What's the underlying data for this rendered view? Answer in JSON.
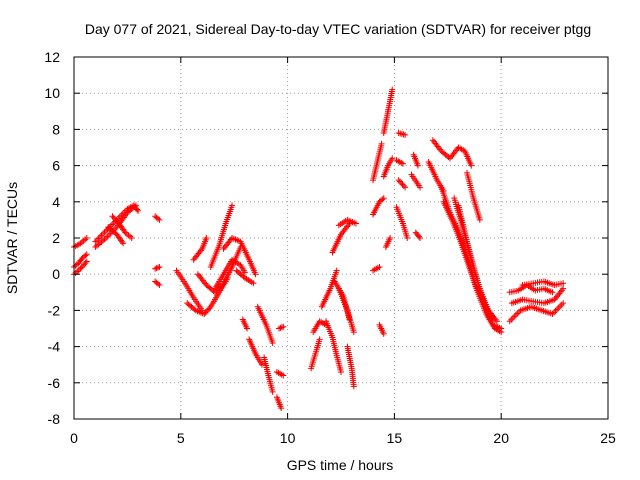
{
  "chart_data": {
    "type": "scatter",
    "title": "Day 077 of 2021, Sidereal Day-to-day VTEC variation (SDTVAR) for receiver ptgg",
    "xlabel": "GPS time / hours",
    "ylabel": "SDTVAR / TECUs",
    "xlim": [
      0,
      25
    ],
    "ylim": [
      -8,
      12
    ],
    "xticks": [
      "0",
      "5",
      "10",
      "15",
      "20",
      "25"
    ],
    "yticks": [
      "-8",
      "-6",
      "-4",
      "-2",
      "0",
      "2",
      "4",
      "6",
      "8",
      "10",
      "12"
    ],
    "grid": true,
    "marker": "+",
    "color": "#ff0000",
    "tracks": [
      [
        [
          0.0,
          1.5
        ],
        [
          0.3,
          1.7
        ],
        [
          0.6,
          2.0
        ]
      ],
      [
        [
          0.0,
          0.4
        ],
        [
          0.2,
          0.6
        ],
        [
          0.4,
          0.9
        ],
        [
          0.6,
          1.1
        ]
      ],
      [
        [
          0.0,
          0.0
        ],
        [
          0.3,
          0.3
        ],
        [
          0.6,
          0.7
        ]
      ],
      [
        [
          1.0,
          1.5
        ],
        [
          1.5,
          2.0
        ],
        [
          2.0,
          2.6
        ],
        [
          2.5,
          3.4
        ],
        [
          2.9,
          3.8
        ]
      ],
      [
        [
          1.0,
          1.8
        ],
        [
          1.5,
          2.4
        ],
        [
          2.0,
          3.0
        ],
        [
          2.5,
          3.6
        ],
        [
          2.8,
          3.8
        ],
        [
          3.0,
          3.5
        ]
      ],
      [
        [
          1.8,
          3.2
        ],
        [
          2.1,
          2.8
        ],
        [
          2.4,
          2.3
        ],
        [
          2.7,
          2.0
        ]
      ],
      [
        [
          1.6,
          2.6
        ],
        [
          2.0,
          2.2
        ],
        [
          2.3,
          1.7
        ]
      ],
      [
        [
          3.8,
          3.2
        ],
        [
          4.0,
          3.0
        ]
      ],
      [
        [
          3.8,
          -0.4
        ],
        [
          4.0,
          -0.6
        ]
      ],
      [
        [
          3.8,
          0.3
        ],
        [
          4.0,
          0.4
        ]
      ],
      [
        [
          4.8,
          0.2
        ],
        [
          5.2,
          -0.5
        ],
        [
          5.6,
          -1.3
        ],
        [
          6.0,
          -2.0
        ]
      ],
      [
        [
          5.3,
          -1.6
        ],
        [
          5.7,
          -2.0
        ],
        [
          6.1,
          -2.2
        ],
        [
          6.4,
          -1.8
        ],
        [
          6.8,
          -1.0
        ],
        [
          7.2,
          -0.2
        ]
      ],
      [
        [
          5.6,
          0.8
        ],
        [
          6.0,
          1.4
        ],
        [
          6.2,
          2.0
        ]
      ],
      [
        [
          5.8,
          0.0
        ],
        [
          6.2,
          -0.6
        ],
        [
          6.6,
          -1.0
        ],
        [
          7.0,
          -0.5
        ],
        [
          7.4,
          0.4
        ],
        [
          7.8,
          1.5
        ]
      ],
      [
        [
          6.4,
          0.4
        ],
        [
          6.8,
          1.6
        ],
        [
          7.1,
          2.8
        ],
        [
          7.4,
          3.8
        ]
      ],
      [
        [
          6.6,
          -0.8
        ],
        [
          7.0,
          0.0
        ],
        [
          7.4,
          0.8
        ],
        [
          7.8,
          0.5
        ],
        [
          8.0,
          0.1
        ]
      ],
      [
        [
          7.0,
          1.4
        ],
        [
          7.4,
          2.0
        ],
        [
          7.8,
          1.8
        ],
        [
          8.2,
          0.8
        ],
        [
          8.5,
          0.0
        ]
      ],
      [
        [
          7.6,
          0.2
        ],
        [
          8.0,
          -0.2
        ],
        [
          8.4,
          -0.5
        ]
      ],
      [
        [
          7.9,
          -2.5
        ],
        [
          8.1,
          -3.0
        ]
      ],
      [
        [
          8.2,
          -3.6
        ],
        [
          8.5,
          -4.4
        ],
        [
          8.8,
          -5.0
        ]
      ],
      [
        [
          8.6,
          -1.8
        ],
        [
          9.0,
          -2.8
        ],
        [
          9.3,
          -3.8
        ]
      ],
      [
        [
          8.9,
          -4.6
        ],
        [
          9.1,
          -5.6
        ],
        [
          9.3,
          -6.5
        ]
      ],
      [
        [
          9.5,
          -6.8
        ],
        [
          9.7,
          -7.4
        ]
      ],
      [
        [
          9.5,
          -5.4
        ],
        [
          9.8,
          -5.6
        ]
      ],
      [
        [
          9.6,
          -3.0
        ],
        [
          9.8,
          -2.9
        ]
      ],
      [
        [
          11.1,
          -5.2
        ],
        [
          11.3,
          -4.4
        ],
        [
          11.5,
          -3.6
        ]
      ],
      [
        [
          11.2,
          -3.2
        ],
        [
          11.5,
          -2.6
        ],
        [
          11.8,
          -2.8
        ]
      ],
      [
        [
          11.6,
          -1.8
        ],
        [
          12.0,
          -0.8
        ],
        [
          12.3,
          0.2
        ]
      ],
      [
        [
          11.8,
          -2.6
        ],
        [
          12.1,
          -3.5
        ],
        [
          12.3,
          -4.5
        ],
        [
          12.5,
          -5.4
        ]
      ],
      [
        [
          12.2,
          -0.4
        ],
        [
          12.6,
          -1.2
        ],
        [
          12.9,
          -2.5
        ]
      ],
      [
        [
          12.1,
          1.2
        ],
        [
          12.5,
          2.2
        ],
        [
          12.9,
          2.8
        ]
      ],
      [
        [
          12.4,
          -0.8
        ],
        [
          12.8,
          -2.0
        ],
        [
          13.1,
          -3.2
        ]
      ],
      [
        [
          12.8,
          -4.0
        ],
        [
          13.0,
          -5.2
        ],
        [
          13.1,
          -6.2
        ]
      ],
      [
        [
          12.4,
          2.7
        ],
        [
          12.8,
          3.0
        ],
        [
          13.2,
          2.8
        ]
      ],
      [
        [
          14.0,
          0.2
        ],
        [
          14.3,
          0.4
        ]
      ],
      [
        [
          14.0,
          3.3
        ],
        [
          14.3,
          4.0
        ],
        [
          14.5,
          4.2
        ]
      ],
      [
        [
          14.0,
          5.2
        ],
        [
          14.2,
          6.2
        ],
        [
          14.4,
          7.2
        ]
      ],
      [
        [
          14.3,
          -2.8
        ],
        [
          14.5,
          -3.3
        ]
      ],
      [
        [
          14.6,
          1.5
        ],
        [
          14.8,
          2.0
        ]
      ],
      [
        [
          14.5,
          7.8
        ],
        [
          14.7,
          9.0
        ],
        [
          14.9,
          10.2
        ]
      ],
      [
        [
          14.5,
          5.4
        ],
        [
          14.7,
          6.0
        ],
        [
          14.9,
          6.4
        ]
      ],
      [
        [
          15.2,
          5.2
        ],
        [
          15.5,
          4.8
        ]
      ],
      [
        [
          15.1,
          6.3
        ],
        [
          15.4,
          6.1
        ]
      ],
      [
        [
          15.2,
          7.8
        ],
        [
          15.5,
          7.7
        ]
      ],
      [
        [
          15.1,
          3.7
        ],
        [
          15.4,
          2.8
        ],
        [
          15.6,
          2.0
        ]
      ],
      [
        [
          15.8,
          5.5
        ],
        [
          16.2,
          4.8
        ]
      ],
      [
        [
          15.9,
          6.6
        ],
        [
          16.1,
          6.0
        ]
      ],
      [
        [
          16.0,
          2.3
        ],
        [
          16.2,
          2.0
        ]
      ],
      [
        [
          16.6,
          6.2
        ],
        [
          17.0,
          5.2
        ],
        [
          17.3,
          4.6
        ]
      ],
      [
        [
          16.8,
          7.4
        ],
        [
          17.2,
          6.8
        ],
        [
          17.6,
          6.4
        ],
        [
          18.0,
          7.0
        ],
        [
          18.3,
          6.8
        ],
        [
          18.6,
          6.0
        ]
      ],
      [
        [
          17.2,
          4.8
        ],
        [
          17.6,
          3.4
        ],
        [
          18.0,
          2.4
        ],
        [
          18.4,
          1.0
        ],
        [
          18.8,
          -0.6
        ],
        [
          19.2,
          -1.6
        ],
        [
          19.6,
          -2.4
        ]
      ],
      [
        [
          17.8,
          4.2
        ],
        [
          18.2,
          2.6
        ],
        [
          18.6,
          0.8
        ],
        [
          19.0,
          -0.8
        ],
        [
          19.4,
          -2.0
        ],
        [
          19.8,
          -2.6
        ]
      ],
      [
        [
          18.0,
          3.8
        ],
        [
          18.4,
          1.8
        ],
        [
          18.8,
          0.0
        ],
        [
          19.2,
          -1.6
        ],
        [
          19.6,
          -2.8
        ],
        [
          20.0,
          -3.0
        ]
      ],
      [
        [
          17.3,
          4.0
        ],
        [
          17.7,
          3.0
        ],
        [
          18.1,
          1.8
        ],
        [
          18.5,
          0.4
        ],
        [
          18.9,
          -1.0
        ],
        [
          19.3,
          -2.2
        ],
        [
          19.7,
          -3.0
        ],
        [
          20.0,
          -3.2
        ]
      ],
      [
        [
          18.4,
          5.6
        ],
        [
          18.7,
          4.2
        ],
        [
          19.0,
          3.0
        ]
      ],
      [
        [
          20.4,
          -1.0
        ],
        [
          20.8,
          -0.9
        ],
        [
          21.2,
          -0.6
        ],
        [
          21.6,
          -0.9
        ],
        [
          22.0,
          -0.8
        ],
        [
          22.4,
          -1.0
        ]
      ],
      [
        [
          20.5,
          -1.6
        ],
        [
          21.0,
          -1.4
        ],
        [
          21.5,
          -1.5
        ],
        [
          22.0,
          -1.6
        ],
        [
          22.5,
          -1.4
        ],
        [
          22.9,
          -0.8
        ]
      ],
      [
        [
          20.4,
          -2.6
        ],
        [
          20.9,
          -2.0
        ],
        [
          21.4,
          -1.8
        ],
        [
          21.9,
          -2.0
        ],
        [
          22.4,
          -2.2
        ],
        [
          22.9,
          -1.6
        ]
      ],
      [
        [
          21.0,
          -0.6
        ],
        [
          21.5,
          -0.5
        ],
        [
          22.0,
          -0.4
        ],
        [
          22.5,
          -0.6
        ],
        [
          22.9,
          -0.5
        ]
      ]
    ]
  }
}
